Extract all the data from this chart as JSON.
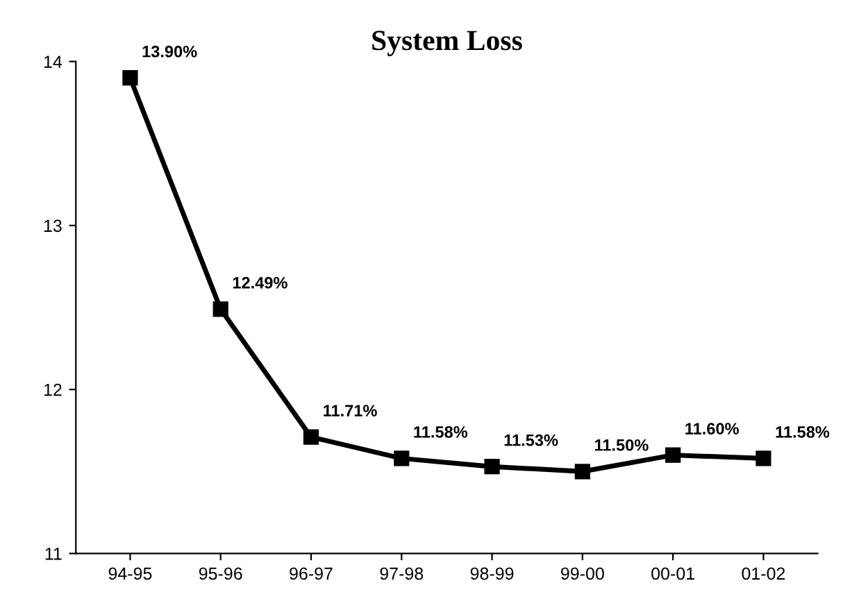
{
  "chart_data": {
    "type": "line",
    "title": "System Loss",
    "categories": [
      "94-95",
      "95-96",
      "96-97",
      "97-98",
      "98-99",
      "99-00",
      "00-01",
      "01-02"
    ],
    "series": [
      {
        "color": "#000000",
        "values": [
          13.9,
          12.49,
          11.71,
          11.58,
          11.53,
          11.5,
          11.6,
          11.58
        ],
        "value_labels": [
          "13.90%",
          "12.49%",
          "11.71%",
          "11.58%",
          "11.53%",
          "11.50%",
          "11.60%",
          "11.58%"
        ]
      }
    ],
    "ylim": [
      11,
      14
    ],
    "yticks": [
      11,
      12,
      13,
      14
    ],
    "grid": false,
    "marker": "square",
    "line_style": "solid"
  }
}
